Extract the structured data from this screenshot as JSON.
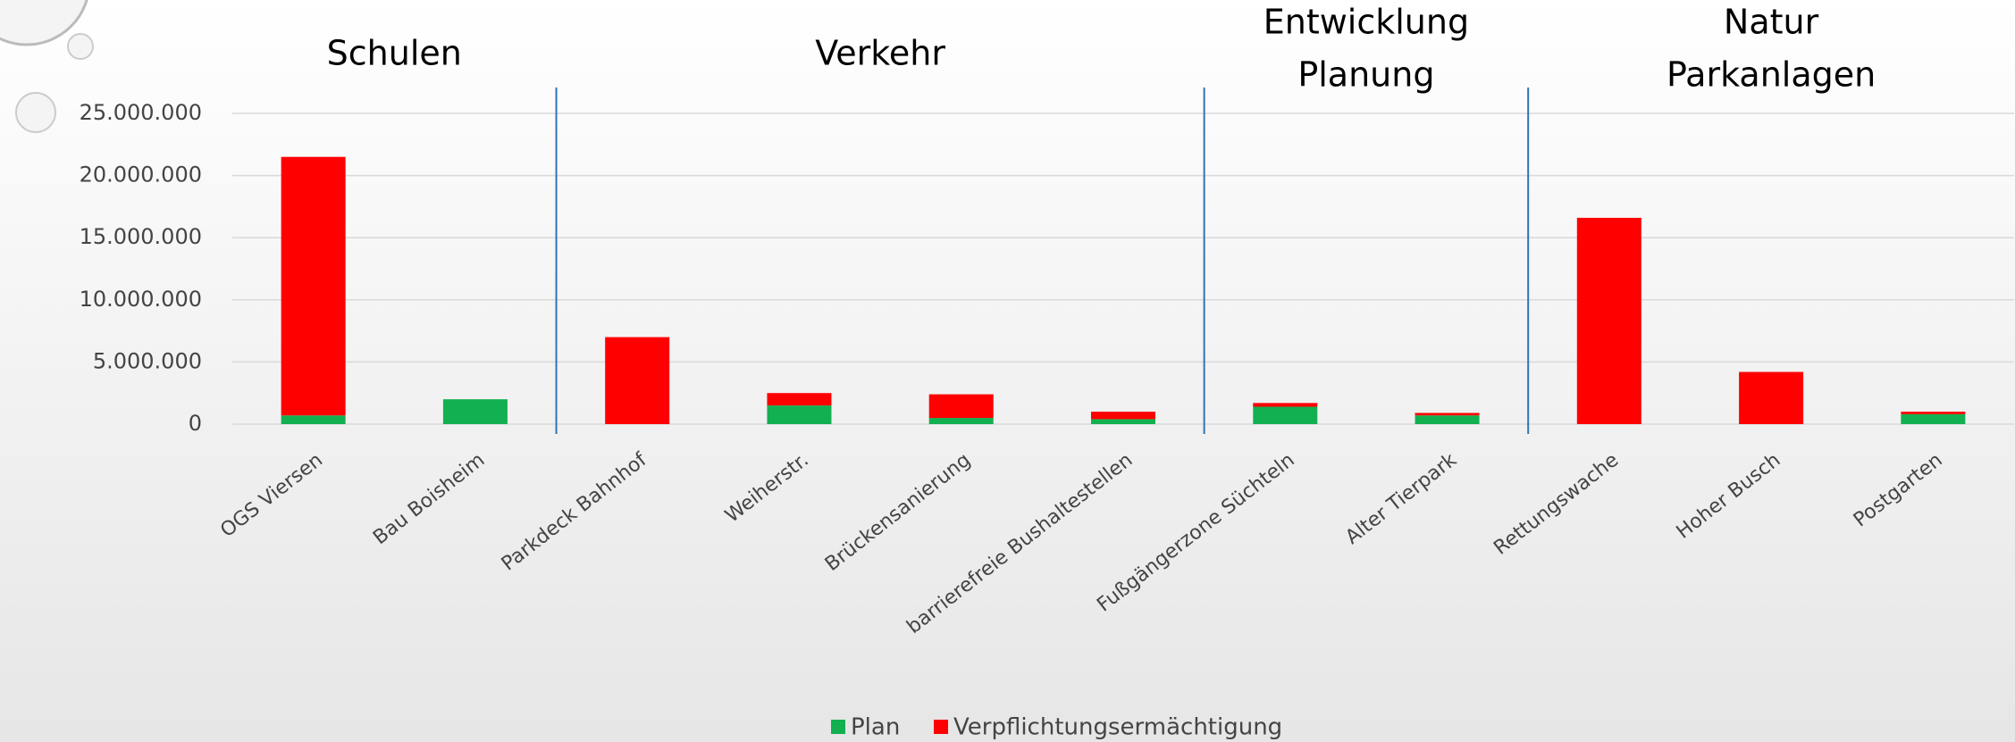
{
  "chart_data": {
    "type": "stacked-bar",
    "categories": [
      "OGS Viersen",
      "Bau Boisheim",
      "Parkdeck Bahnhof",
      "Weiherstr.",
      "Brückensanierung",
      "barrierefreie Bushaltestellen",
      "Fußgängerzone Süchteln",
      "Alter Tierpark",
      "Rettungswache",
      "Hoher Busch",
      "Postgarten"
    ],
    "series": [
      {
        "name": "Plan",
        "color": "#12b050",
        "values": [
          700000,
          2000000,
          0,
          1500000,
          500000,
          400000,
          1400000,
          700000,
          0,
          0,
          800000
        ]
      },
      {
        "name": "Verpflichtungsermächtigung",
        "color": "#ff0000",
        "values": [
          20800000,
          0,
          7000000,
          1000000,
          1900000,
          600000,
          300000,
          200000,
          16600000,
          4200000,
          200000
        ]
      }
    ],
    "ylim": [
      0,
      25000000
    ],
    "yticks": [
      0,
      {
        "value": 5000000,
        "label": "5.000.000"
      },
      {
        "value": 10000000,
        "label": "10.000.000"
      },
      {
        "value": 15000000,
        "label": "15.000.000"
      },
      {
        "value": 20000000,
        "label": "20.000.000"
      },
      {
        "value": 25000000,
        "label": "25.000.000"
      }
    ],
    "grid": true,
    "legend": "bottom",
    "groups": [
      {
        "lines": [
          "Schulen"
        ],
        "categories": [
          "OGS Viersen",
          "Bau Boisheim"
        ]
      },
      {
        "lines": [
          "Verkehr"
        ],
        "categories": [
          "Parkdeck Bahnhof",
          "Weiherstr.",
          "Brückensanierung",
          "barrierefreie Bushaltestellen"
        ]
      },
      {
        "lines": [
          "Entwicklung",
          "Planung"
        ],
        "categories": [
          "Fußgängerzone Süchteln",
          "Alter Tierpark"
        ]
      },
      {
        "lines": [
          "Natur",
          "Parkanlagen"
        ],
        "categories": [
          "Rettungswache",
          "Hoher Busch",
          "Postgarten"
        ]
      }
    ]
  }
}
